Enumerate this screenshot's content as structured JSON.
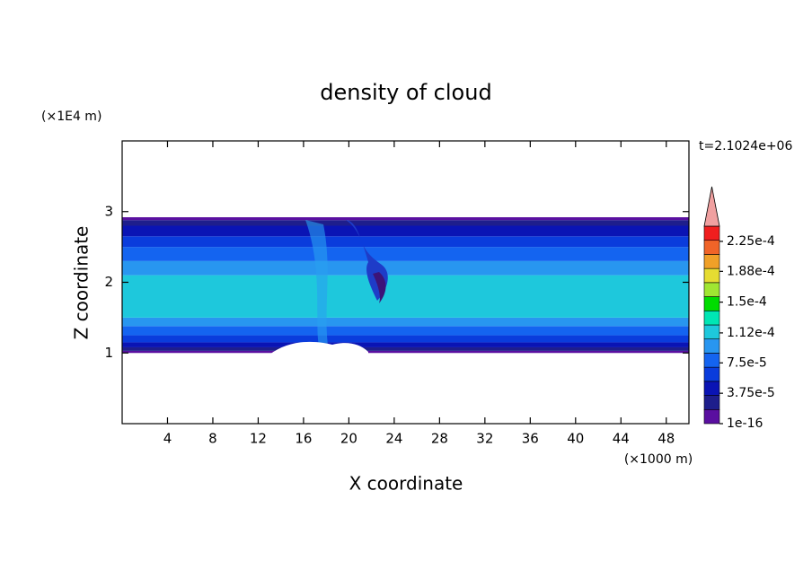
{
  "chart_data": {
    "type": "contour",
    "title": "density of cloud",
    "xlabel": "X coordinate",
    "ylabel": "Z coordinate",
    "x_unit": "(×1000 m)",
    "y_unit": "(×1E4 m)",
    "time_label": "t=2.1024e+06",
    "xlim": [
      0,
      50
    ],
    "xticks": [
      4,
      8,
      12,
      16,
      20,
      24,
      28,
      32,
      36,
      40,
      44,
      48
    ],
    "ylim": [
      0,
      4
    ],
    "yticks": [
      1,
      2,
      3
    ],
    "profile": {
      "z_edges": [
        1.0,
        1.03,
        1.08,
        1.15,
        1.25,
        1.38,
        1.5,
        2.1,
        2.3,
        2.5,
        2.65,
        2.8,
        2.88,
        2.92
      ],
      "values": [
        1e-05,
        2.5e-05,
        4.5e-05,
        6.5e-05,
        8.5e-05,
        0.0001,
        0.00012,
        0.0001,
        8.5e-05,
        6.5e-05,
        4.5e-05,
        2.5e-05,
        1e-05
      ]
    },
    "colorbar": {
      "lim": [
        0,
        0.00024375
      ],
      "colors": [
        "#5a0fa0",
        "#1e1e8c",
        "#0a14b4",
        "#0a3cdc",
        "#1464f0",
        "#2896f0",
        "#1ec8dc",
        "#00e6b4",
        "#00dc00",
        "#a0e632",
        "#e6dc32",
        "#f0a028",
        "#f06428",
        "#f01e1e"
      ],
      "extend_color": "#f0a0a0",
      "ticks": [
        {
          "value": 1e-16,
          "label": "1e-16"
        },
        {
          "value": 3.75e-05,
          "label": "3.75e-5"
        },
        {
          "value": 7.5e-05,
          "label": "7.5e-5"
        },
        {
          "value": 0.000112,
          "label": "1.12e-4"
        },
        {
          "value": 0.00015,
          "label": "1.5e-4"
        },
        {
          "value": 0.000188,
          "label": "1.88e-4"
        },
        {
          "value": 0.000225,
          "label": "2.25e-4"
        }
      ]
    }
  }
}
